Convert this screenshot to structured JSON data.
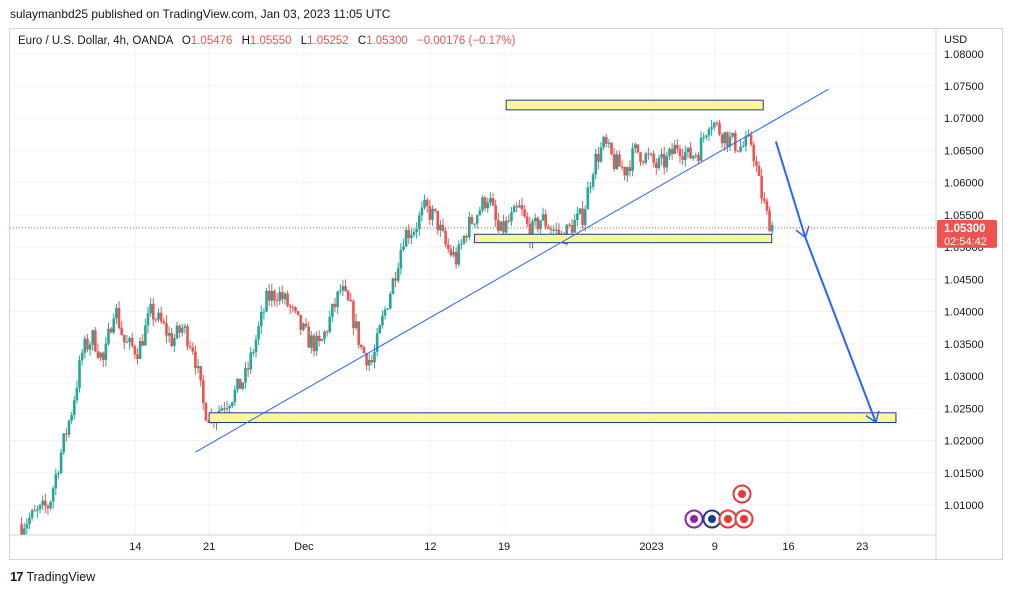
{
  "publisher": "sulaymanbd25 published on TradingView.com, Jan 03, 2023 11:05 UTC",
  "legend": {
    "symbol": "Euro / U.S. Dollar, 4h, OANDA",
    "open_label": "O",
    "open": "1.05476",
    "high_label": "H",
    "high": "1.05550",
    "low_label": "L",
    "low": "1.05252",
    "close_label": "C",
    "close": "1.05300",
    "change": "−0.00176 (−0.17%)"
  },
  "footer": {
    "logo": "17",
    "brand": "TradingView"
  },
  "colors": {
    "up": "#26a69a",
    "down": "#ef5350",
    "trendline": "#2962ff",
    "zone_fill": "#fff59d",
    "zone_stroke": "#1e3a8a",
    "price_label_bg": "#ef5350"
  },
  "chart_data": {
    "type": "candlestick",
    "currency": "USD",
    "y_ticks": [
      "1.01000",
      "1.01500",
      "1.02000",
      "1.02500",
      "1.03000",
      "1.03500",
      "1.04000",
      "1.04500",
      "1.05000",
      "1.05500",
      "1.06000",
      "1.06500",
      "1.07000",
      "1.07500",
      "1.08000"
    ],
    "y_tick_values": [
      1.01,
      1.015,
      1.02,
      1.025,
      1.03,
      1.035,
      1.04,
      1.045,
      1.05,
      1.055,
      1.06,
      1.065,
      1.07,
      1.075,
      1.08
    ],
    "ylim": [
      1.0055,
      1.081
    ],
    "x_ticks": [
      {
        "label": "14",
        "day": 14
      },
      {
        "label": "21",
        "day": 21
      },
      {
        "label": "Dec",
        "day": 30
      },
      {
        "label": "12",
        "day": 42
      },
      {
        "label": "19",
        "day": 49
      },
      {
        "label": "2023",
        "day": 63
      },
      {
        "label": "9",
        "day": 69
      },
      {
        "label": "16",
        "day": 76
      },
      {
        "label": "23",
        "day": 83
      }
    ],
    "xlim": [
      2.1,
      90.0
    ],
    "last_price": {
      "value": "1.05300",
      "countdown": "02:54:42",
      "price": 1.053
    },
    "price_path": [
      [
        3.2,
        1.007
      ],
      [
        4.5,
        1.0085
      ],
      [
        5.8,
        1.01
      ],
      [
        7.0,
        1.0185
      ],
      [
        8.0,
        1.025
      ],
      [
        9.0,
        1.034
      ],
      [
        10.0,
        1.036
      ],
      [
        11.0,
        1.032
      ],
      [
        12.0,
        1.041
      ],
      [
        13.0,
        1.035
      ],
      [
        14.3,
        1.034
      ],
      [
        15.5,
        1.04
      ],
      [
        16.5,
        1.038
      ],
      [
        17.5,
        1.0355
      ],
      [
        18.5,
        1.0375
      ],
      [
        19.5,
        1.0345
      ],
      [
        20.5,
        1.025
      ],
      [
        21.2,
        1.0235
      ],
      [
        22.3,
        1.0255
      ],
      [
        23.5,
        1.0275
      ],
      [
        24.5,
        1.03
      ],
      [
        25.5,
        1.036
      ],
      [
        26.5,
        1.042
      ],
      [
        27.5,
        1.043
      ],
      [
        28.5,
        1.041
      ],
      [
        29.5,
        1.038
      ],
      [
        30.5,
        1.0355
      ],
      [
        31.5,
        1.0345
      ],
      [
        32.5,
        1.039
      ],
      [
        33.5,
        1.0435
      ],
      [
        34.5,
        1.04
      ],
      [
        35.5,
        1.034
      ],
      [
        36.5,
        1.032
      ],
      [
        37.5,
        1.039
      ],
      [
        38.5,
        1.045
      ],
      [
        39.5,
        1.052
      ],
      [
        40.5,
        1.053
      ],
      [
        41.5,
        1.056
      ],
      [
        42.5,
        1.0545
      ],
      [
        43.5,
        1.05
      ],
      [
        44.5,
        1.048
      ],
      [
        45.5,
        1.053
      ],
      [
        46.5,
        1.0555
      ],
      [
        47.5,
        1.058
      ],
      [
        48.5,
        1.052
      ],
      [
        49.5,
        1.054
      ],
      [
        50.5,
        1.056
      ],
      [
        51.5,
        1.052
      ],
      [
        52.5,
        1.0545
      ],
      [
        53.5,
        1.053
      ],
      [
        54.5,
        1.0515
      ],
      [
        55.5,
        1.0535
      ],
      [
        56.5,
        1.055
      ],
      [
        57.5,
        1.063
      ],
      [
        58.5,
        1.066
      ],
      [
        59.5,
        1.063
      ],
      [
        60.5,
        1.062
      ],
      [
        61.5,
        1.065
      ],
      [
        62.5,
        1.064
      ],
      [
        63.5,
        1.0625
      ],
      [
        64.5,
        1.0635
      ],
      [
        65.5,
        1.066
      ],
      [
        66.5,
        1.064
      ],
      [
        67.5,
        1.065
      ],
      [
        68.5,
        1.07
      ],
      [
        69.5,
        1.068
      ],
      [
        70.5,
        1.0665
      ],
      [
        71.5,
        1.0655
      ],
      [
        72.5,
        1.0663
      ],
      [
        73.3,
        1.059
      ],
      [
        74.0,
        1.0545
      ],
      [
        74.6,
        1.053
      ]
    ],
    "zones": [
      {
        "x1": 49.2,
        "x2": 73.6,
        "y1": 1.0713,
        "y2": 1.0728
      },
      {
        "x1": 46.2,
        "x2": 74.4,
        "y1": 1.0507,
        "y2": 1.052
      },
      {
        "x1": 21.0,
        "x2": 86.2,
        "y1": 1.0228,
        "y2": 1.0243
      }
    ],
    "trendline": [
      [
        19.7,
        1.0182
      ],
      [
        79.8,
        1.0745
      ]
    ],
    "arrows": [
      [
        [
          74.8,
          1.0664
        ],
        [
          77.6,
          1.0515
        ]
      ],
      [
        [
          77.6,
          1.0515
        ],
        [
          84.3,
          1.0228
        ]
      ]
    ]
  }
}
